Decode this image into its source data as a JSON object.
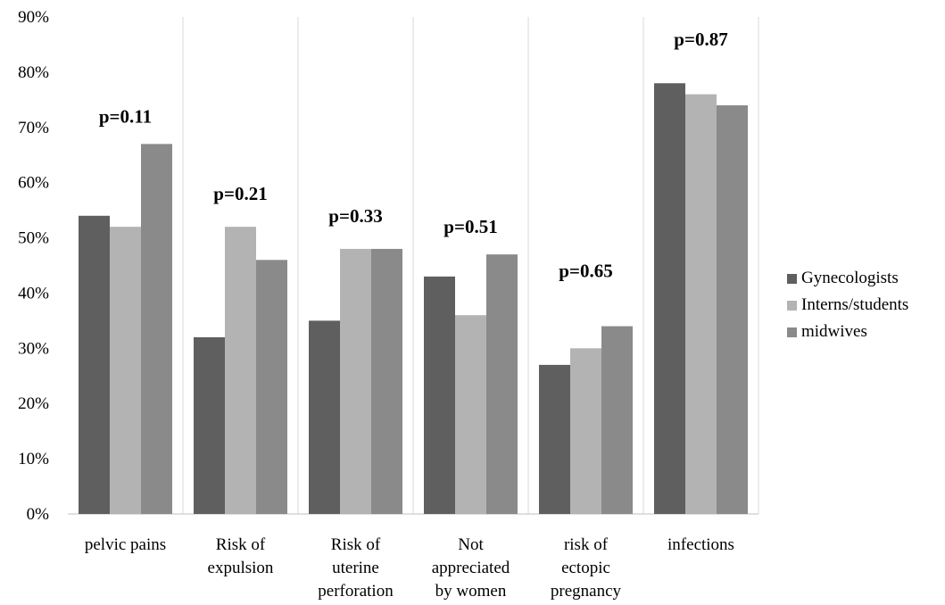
{
  "chart_data": {
    "type": "bar",
    "categories": [
      [
        "pelvic pains"
      ],
      [
        "Risk of",
        "expulsion"
      ],
      [
        "Risk of",
        "uterine",
        "perforation"
      ],
      [
        "Not",
        "appreciated",
        "by women"
      ],
      [
        "risk of",
        "ectopic",
        "pregnancy"
      ],
      [
        "infections"
      ]
    ],
    "series": [
      {
        "name": "Gynecologists",
        "color": "#5f5f5f",
        "values": [
          54,
          32,
          35,
          43,
          27,
          78
        ]
      },
      {
        "name": "Interns/students",
        "color": "#b3b3b3",
        "values": [
          52,
          52,
          48,
          36,
          30,
          76
        ]
      },
      {
        "name": "midwives",
        "color": "#8a8a8a",
        "values": [
          67,
          46,
          48,
          47,
          34,
          74
        ]
      }
    ],
    "annotations": [
      {
        "category_index": 0,
        "text": "p=0.11",
        "y": 72
      },
      {
        "category_index": 1,
        "text": "p=0.21",
        "y": 58
      },
      {
        "category_index": 2,
        "text": "p=0.33",
        "y": 54
      },
      {
        "category_index": 3,
        "text": "p=0.51",
        "y": 52
      },
      {
        "category_index": 4,
        "text": "p=0.65",
        "y": 44
      },
      {
        "category_index": 5,
        "text": "p=0.87",
        "y": 86
      }
    ],
    "ylim": [
      0,
      90
    ],
    "yticks": [
      "0%",
      "10%",
      "20%",
      "30%",
      "40%",
      "50%",
      "60%",
      "70%",
      "80%",
      "90%"
    ],
    "legend_position": "right",
    "category_separators": true
  }
}
